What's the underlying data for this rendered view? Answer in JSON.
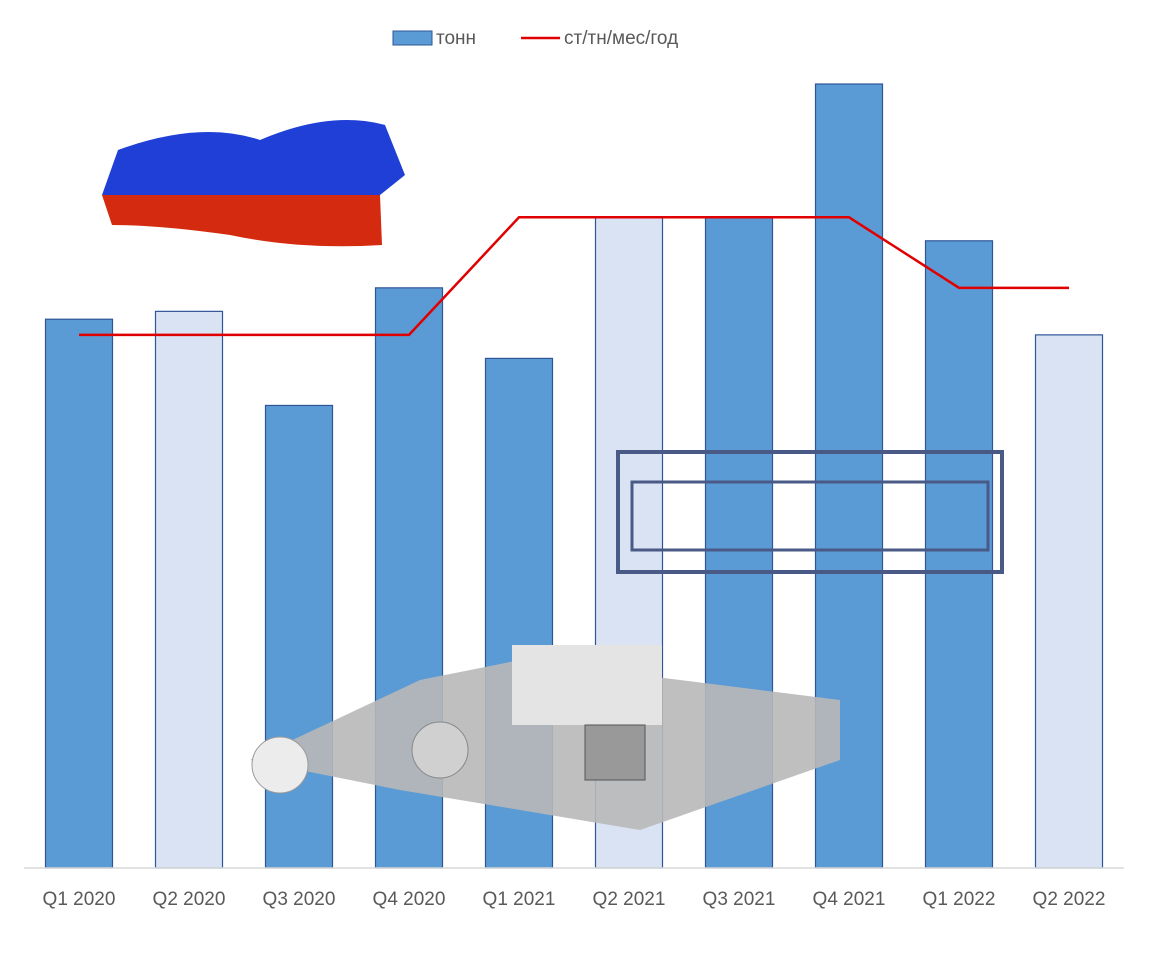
{
  "chart_data": {
    "type": "bar",
    "categories": [
      "Q1 2020",
      "Q2 2020",
      "Q3 2020",
      "Q4 2020",
      "Q1 2021",
      "Q2 2021",
      "Q3 2021",
      "Q4 2021",
      "Q1 2022",
      "Q2 2022"
    ],
    "series": [
      {
        "name": "тонн",
        "type": "bar",
        "color": "#5b9bd5",
        "colors": [
          "#5b9bd5",
          "#dae3f3",
          "#5b9bd5",
          "#5b9bd5",
          "#5b9bd5",
          "#dae3f3",
          "#5b9bd5",
          "#5b9bd5",
          "#5b9bd5",
          "#dae3f3"
        ],
        "values": [
          70,
          71,
          59,
          74,
          65,
          83,
          83,
          100,
          80,
          68
        ]
      },
      {
        "name": "ст/тн/мес/год",
        "type": "line",
        "color": "#e00000",
        "values": [
          68,
          68,
          68,
          68,
          83,
          83,
          83,
          83,
          74,
          74
        ]
      }
    ],
    "ylim": [
      0,
      100
    ],
    "legend": "top"
  }
}
